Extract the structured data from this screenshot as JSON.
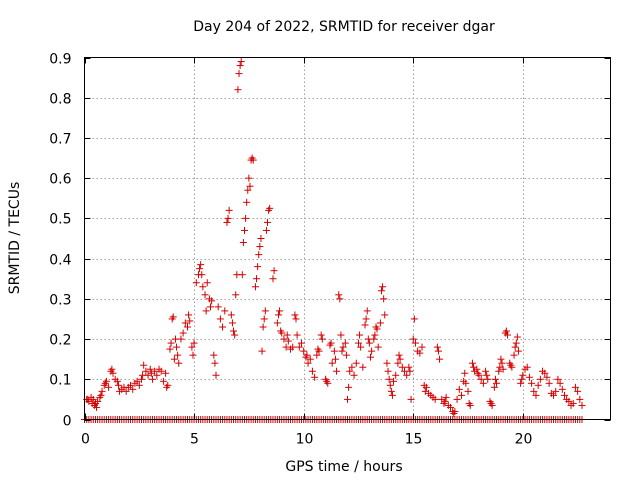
{
  "chart_data": {
    "type": "scatter",
    "title": "Day 204 of 2022, SRMTID for receiver dgar",
    "xlabel": "GPS time / hours",
    "ylabel": "SRMTID / TECUs",
    "xlim": [
      0,
      24
    ],
    "ylim": [
      0,
      0.9
    ],
    "xticks": [
      0,
      5,
      10,
      15,
      20
    ],
    "xtick_labels": [
      "0",
      "5",
      "10",
      "15",
      "20"
    ],
    "yticks": [
      0,
      0.1,
      0.2,
      0.3,
      0.4,
      0.5,
      0.6,
      0.7,
      0.8,
      0.9
    ],
    "ytick_labels": [
      "0",
      "0.1",
      "0.2",
      "0.3",
      "0.4",
      "0.5",
      "0.6",
      "0.7",
      "0.8",
      "0.9"
    ],
    "grid": true,
    "marker": "+",
    "color": "#d40000",
    "series": [
      {
        "name": "SRMTID",
        "points": [
          [
            0.1,
            0.05
          ],
          [
            0.15,
            0.05
          ],
          [
            0.2,
            0.045
          ],
          [
            0.3,
            0.055
          ],
          [
            0.35,
            0.04
          ],
          [
            0.4,
            0.05
          ],
          [
            0.45,
            0.035
          ],
          [
            0.5,
            0.04
          ],
          [
            0.55,
            0.03
          ],
          [
            0.6,
            0.045
          ],
          [
            0.7,
            0.055
          ],
          [
            0.75,
            0.06
          ],
          [
            0.8,
            0.07
          ],
          [
            0.9,
            0.085
          ],
          [
            0.95,
            0.09
          ],
          [
            1.0,
            0.095
          ],
          [
            1.1,
            0.08
          ],
          [
            1.2,
            0.12
          ],
          [
            1.25,
            0.125
          ],
          [
            1.3,
            0.115
          ],
          [
            1.4,
            0.1
          ],
          [
            1.5,
            0.095
          ],
          [
            1.55,
            0.085
          ],
          [
            1.6,
            0.07
          ],
          [
            1.7,
            0.075
          ],
          [
            1.8,
            0.08
          ],
          [
            1.9,
            0.07
          ],
          [
            2.0,
            0.08
          ],
          [
            2.1,
            0.085
          ],
          [
            2.2,
            0.075
          ],
          [
            2.3,
            0.09
          ],
          [
            2.4,
            0.095
          ],
          [
            2.5,
            0.085
          ],
          [
            2.6,
            0.1
          ],
          [
            2.65,
            0.11
          ],
          [
            2.7,
            0.135
          ],
          [
            2.8,
            0.12
          ],
          [
            2.9,
            0.11
          ],
          [
            3.0,
            0.125
          ],
          [
            3.05,
            0.115
          ],
          [
            3.1,
            0.1
          ],
          [
            3.2,
            0.12
          ],
          [
            3.3,
            0.11
          ],
          [
            3.4,
            0.125
          ],
          [
            3.5,
            0.12
          ],
          [
            3.6,
            0.095
          ],
          [
            3.7,
            0.115
          ],
          [
            3.75,
            0.08
          ],
          [
            3.8,
            0.085
          ],
          [
            3.9,
            0.175
          ],
          [
            3.95,
            0.19
          ],
          [
            4.0,
            0.25
          ],
          [
            4.05,
            0.255
          ],
          [
            4.1,
            0.15
          ],
          [
            4.15,
            0.2
          ],
          [
            4.2,
            0.18
          ],
          [
            4.25,
            0.16
          ],
          [
            4.3,
            0.14
          ],
          [
            4.4,
            0.2
          ],
          [
            4.5,
            0.215
          ],
          [
            4.6,
            0.24
          ],
          [
            4.7,
            0.23
          ],
          [
            4.75,
            0.26
          ],
          [
            4.8,
            0.245
          ],
          [
            4.9,
            0.18
          ],
          [
            4.95,
            0.16
          ],
          [
            5.0,
            0.19
          ],
          [
            5.1,
            0.34
          ],
          [
            5.2,
            0.36
          ],
          [
            5.25,
            0.375
          ],
          [
            5.3,
            0.385
          ],
          [
            5.35,
            0.36
          ],
          [
            5.4,
            0.33
          ],
          [
            5.5,
            0.31
          ],
          [
            5.55,
            0.27
          ],
          [
            5.6,
            0.34
          ],
          [
            5.7,
            0.3
          ],
          [
            5.75,
            0.28
          ],
          [
            5.8,
            0.295
          ],
          [
            5.9,
            0.16
          ],
          [
            5.95,
            0.14
          ],
          [
            6.0,
            0.11
          ],
          [
            6.1,
            0.28
          ],
          [
            6.2,
            0.25
          ],
          [
            6.3,
            0.23
          ],
          [
            6.4,
            0.27
          ],
          [
            6.5,
            0.49
          ],
          [
            6.55,
            0.5
          ],
          [
            6.6,
            0.52
          ],
          [
            6.7,
            0.26
          ],
          [
            6.75,
            0.24
          ],
          [
            6.8,
            0.22
          ],
          [
            6.85,
            0.21
          ],
          [
            6.9,
            0.31
          ],
          [
            6.95,
            0.36
          ],
          [
            7.0,
            0.82
          ],
          [
            7.05,
            0.86
          ],
          [
            7.1,
            0.88
          ],
          [
            7.15,
            0.89
          ],
          [
            7.2,
            0.36
          ],
          [
            7.25,
            0.44
          ],
          [
            7.3,
            0.47
          ],
          [
            7.35,
            0.5
          ],
          [
            7.4,
            0.54
          ],
          [
            7.45,
            0.57
          ],
          [
            7.5,
            0.6
          ],
          [
            7.55,
            0.58
          ],
          [
            7.6,
            0.645
          ],
          [
            7.65,
            0.65
          ],
          [
            7.7,
            0.645
          ],
          [
            7.8,
            0.33
          ],
          [
            7.85,
            0.35
          ],
          [
            7.9,
            0.38
          ],
          [
            7.95,
            0.41
          ],
          [
            8.0,
            0.43
          ],
          [
            8.05,
            0.45
          ],
          [
            8.1,
            0.17
          ],
          [
            8.15,
            0.23
          ],
          [
            8.2,
            0.25
          ],
          [
            8.25,
            0.27
          ],
          [
            8.3,
            0.47
          ],
          [
            8.35,
            0.49
          ],
          [
            8.4,
            0.52
          ],
          [
            8.45,
            0.525
          ],
          [
            8.6,
            0.35
          ],
          [
            8.65,
            0.37
          ],
          [
            8.8,
            0.24
          ],
          [
            8.85,
            0.26
          ],
          [
            8.9,
            0.27
          ],
          [
            8.95,
            0.22
          ],
          [
            9.0,
            0.215
          ],
          [
            9.1,
            0.2
          ],
          [
            9.2,
            0.18
          ],
          [
            9.25,
            0.21
          ],
          [
            9.3,
            0.195
          ],
          [
            9.4,
            0.175
          ],
          [
            9.5,
            0.18
          ],
          [
            9.6,
            0.26
          ],
          [
            9.65,
            0.25
          ],
          [
            9.7,
            0.21
          ],
          [
            9.8,
            0.18
          ],
          [
            9.9,
            0.19
          ],
          [
            10.0,
            0.17
          ],
          [
            10.1,
            0.155
          ],
          [
            10.15,
            0.16
          ],
          [
            10.2,
            0.14
          ],
          [
            10.3,
            0.15
          ],
          [
            10.4,
            0.12
          ],
          [
            10.5,
            0.105
          ],
          [
            10.6,
            0.16
          ],
          [
            10.65,
            0.175
          ],
          [
            10.7,
            0.17
          ],
          [
            10.8,
            0.21
          ],
          [
            10.85,
            0.2
          ],
          [
            11.0,
            0.1
          ],
          [
            11.05,
            0.095
          ],
          [
            11.1,
            0.09
          ],
          [
            11.2,
            0.185
          ],
          [
            11.25,
            0.19
          ],
          [
            11.3,
            0.14
          ],
          [
            11.4,
            0.17
          ],
          [
            11.45,
            0.15
          ],
          [
            11.5,
            0.12
          ],
          [
            11.6,
            0.31
          ],
          [
            11.65,
            0.3
          ],
          [
            11.7,
            0.21
          ],
          [
            11.75,
            0.17
          ],
          [
            11.8,
            0.18
          ],
          [
            11.9,
            0.19
          ],
          [
            11.95,
            0.16
          ],
          [
            12.0,
            0.05
          ],
          [
            12.05,
            0.08
          ],
          [
            12.1,
            0.12
          ],
          [
            12.2,
            0.13
          ],
          [
            12.3,
            0.11
          ],
          [
            12.4,
            0.14
          ],
          [
            12.5,
            0.19
          ],
          [
            12.55,
            0.21
          ],
          [
            12.6,
            0.18
          ],
          [
            12.7,
            0.13
          ],
          [
            12.8,
            0.235
          ],
          [
            12.85,
            0.25
          ],
          [
            12.9,
            0.27
          ],
          [
            12.95,
            0.2
          ],
          [
            13.0,
            0.19
          ],
          [
            13.05,
            0.155
          ],
          [
            13.1,
            0.17
          ],
          [
            13.2,
            0.2
          ],
          [
            13.25,
            0.21
          ],
          [
            13.3,
            0.23
          ],
          [
            13.35,
            0.225
          ],
          [
            13.4,
            0.18
          ],
          [
            13.5,
            0.24
          ],
          [
            13.55,
            0.32
          ],
          [
            13.6,
            0.33
          ],
          [
            13.65,
            0.3
          ],
          [
            13.7,
            0.26
          ],
          [
            13.8,
            0.14
          ],
          [
            13.85,
            0.12
          ],
          [
            13.9,
            0.1
          ],
          [
            13.95,
            0.085
          ],
          [
            14.0,
            0.07
          ],
          [
            14.05,
            0.06
          ],
          [
            14.1,
            0.095
          ],
          [
            14.2,
            0.11
          ],
          [
            14.3,
            0.14
          ],
          [
            14.35,
            0.16
          ],
          [
            14.4,
            0.15
          ],
          [
            14.5,
            0.13
          ],
          [
            14.6,
            0.12
          ],
          [
            14.7,
            0.11
          ],
          [
            14.8,
            0.13
          ],
          [
            14.85,
            0.12
          ],
          [
            14.9,
            0.05
          ],
          [
            15.0,
            0.2
          ],
          [
            15.05,
            0.25
          ],
          [
            15.1,
            0.19
          ],
          [
            15.2,
            0.17
          ],
          [
            15.3,
            0.165
          ],
          [
            15.4,
            0.18
          ],
          [
            15.5,
            0.085
          ],
          [
            15.55,
            0.07
          ],
          [
            15.6,
            0.08
          ],
          [
            15.7,
            0.065
          ],
          [
            15.8,
            0.06
          ],
          [
            15.9,
            0.055
          ],
          [
            16.0,
            0.05
          ],
          [
            16.1,
            0.18
          ],
          [
            16.15,
            0.17
          ],
          [
            16.2,
            0.15
          ],
          [
            16.3,
            0.05
          ],
          [
            16.4,
            0.04
          ],
          [
            16.45,
            0.045
          ],
          [
            16.5,
            0.055
          ],
          [
            16.6,
            0.035
          ],
          [
            16.7,
            0.03
          ],
          [
            16.8,
            0.02
          ],
          [
            16.85,
            0.015
          ],
          [
            16.9,
            0.02
          ],
          [
            17.0,
            0.05
          ],
          [
            17.1,
            0.075
          ],
          [
            17.2,
            0.06
          ],
          [
            17.3,
            0.095
          ],
          [
            17.35,
            0.115
          ],
          [
            17.4,
            0.09
          ],
          [
            17.5,
            0.07
          ],
          [
            17.55,
            0.04
          ],
          [
            17.6,
            0.035
          ],
          [
            17.7,
            0.14
          ],
          [
            17.75,
            0.13
          ],
          [
            17.8,
            0.12
          ],
          [
            17.9,
            0.125
          ],
          [
            17.95,
            0.115
          ],
          [
            18.0,
            0.11
          ],
          [
            18.1,
            0.1
          ],
          [
            18.2,
            0.09
          ],
          [
            18.3,
            0.12
          ],
          [
            18.35,
            0.11
          ],
          [
            18.4,
            0.1
          ],
          [
            18.5,
            0.045
          ],
          [
            18.55,
            0.04
          ],
          [
            18.6,
            0.035
          ],
          [
            18.7,
            0.08
          ],
          [
            18.75,
            0.1
          ],
          [
            18.8,
            0.09
          ],
          [
            18.9,
            0.12
          ],
          [
            18.95,
            0.13
          ],
          [
            19.0,
            0.15
          ],
          [
            19.05,
            0.14
          ],
          [
            19.1,
            0.125
          ],
          [
            19.2,
            0.215
          ],
          [
            19.25,
            0.22
          ],
          [
            19.3,
            0.21
          ],
          [
            19.4,
            0.14
          ],
          [
            19.45,
            0.135
          ],
          [
            19.5,
            0.13
          ],
          [
            19.6,
            0.16
          ],
          [
            19.65,
            0.18
          ],
          [
            19.7,
            0.19
          ],
          [
            19.75,
            0.205
          ],
          [
            19.8,
            0.17
          ],
          [
            19.9,
            0.09
          ],
          [
            19.95,
            0.1
          ],
          [
            20.0,
            0.11
          ],
          [
            20.1,
            0.125
          ],
          [
            20.2,
            0.13
          ],
          [
            20.3,
            0.105
          ],
          [
            20.4,
            0.09
          ],
          [
            20.5,
            0.07
          ],
          [
            20.6,
            0.06
          ],
          [
            20.7,
            0.085
          ],
          [
            20.8,
            0.1
          ],
          [
            20.9,
            0.12
          ],
          [
            21.0,
            0.115
          ],
          [
            21.1,
            0.105
          ],
          [
            21.2,
            0.09
          ],
          [
            21.3,
            0.065
          ],
          [
            21.4,
            0.06
          ],
          [
            21.5,
            0.07
          ],
          [
            21.6,
            0.1
          ],
          [
            21.7,
            0.09
          ],
          [
            21.8,
            0.075
          ],
          [
            21.9,
            0.06
          ],
          [
            22.0,
            0.05
          ],
          [
            22.1,
            0.045
          ],
          [
            22.2,
            0.035
          ],
          [
            22.3,
            0.04
          ],
          [
            22.4,
            0.08
          ],
          [
            22.5,
            0.07
          ],
          [
            22.6,
            0.05
          ],
          [
            22.7,
            0.035
          ]
        ],
        "zero_markers_x_range": [
          0,
          22.7
        ]
      }
    ]
  }
}
